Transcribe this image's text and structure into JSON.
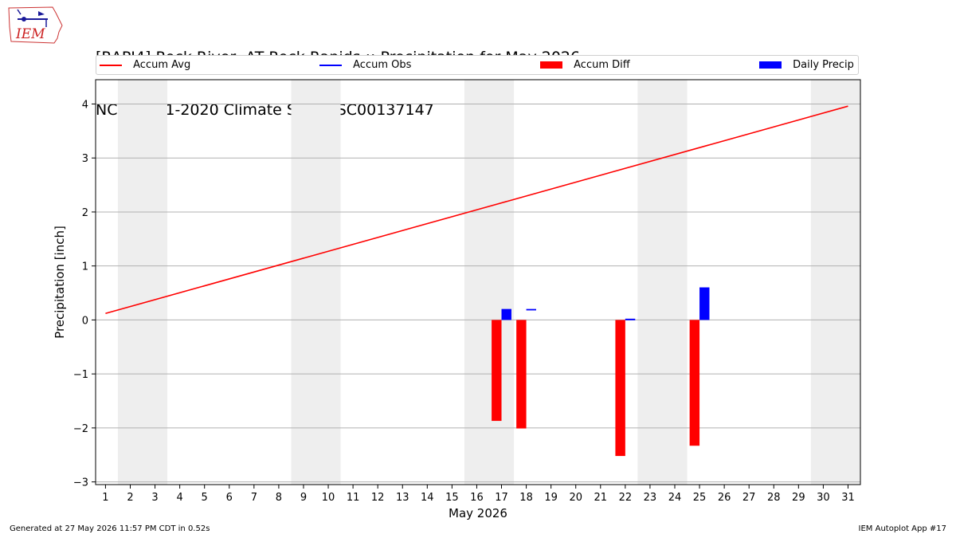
{
  "header": {
    "title_line1": "[RAPI4] Rock River  AT Rock Rapids :: Precipitation for May 2026",
    "title_line2": "NCEI 1991-2020 Climate Site: USC00137147",
    "logo_text": "IEM"
  },
  "footer": {
    "generated": "Generated at 27 May 2026 11:57 PM CDT in 0.52s",
    "app": "IEM Autoplot App #17"
  },
  "colors": {
    "accum_avg": "#ff0000",
    "accum_obs": "#0000ff",
    "accum_diff": "#ff0000",
    "daily_precip": "#0000ff",
    "weekend_shade": "#eeeeee",
    "grid": "#b0b0b0"
  },
  "chart_data": {
    "type": "bar",
    "title": "[RAPI4] Rock River  AT Rock Rapids :: Precipitation for May 2026",
    "xlabel": "May 2026",
    "ylabel": "Precipitation [inch]",
    "ylim": [
      -3.05,
      4.45
    ],
    "xlim": [
      0.6,
      31.5
    ],
    "yticks": [
      -3,
      -2,
      -1,
      0,
      1,
      2,
      3,
      4
    ],
    "xticks": [
      1,
      2,
      3,
      4,
      5,
      6,
      7,
      8,
      9,
      10,
      11,
      12,
      13,
      14,
      15,
      16,
      17,
      18,
      19,
      20,
      21,
      22,
      23,
      24,
      25,
      26,
      27,
      28,
      29,
      30,
      31
    ],
    "grid": "horizontal",
    "legend": [
      {
        "name": "Accum Avg",
        "kind": "line",
        "color": "#ff0000"
      },
      {
        "name": "Accum Obs",
        "kind": "line",
        "color": "#0000ff"
      },
      {
        "name": "Accum Diff",
        "kind": "bar",
        "color": "#ff0000"
      },
      {
        "name": "Daily Precip",
        "kind": "bar",
        "color": "#0000ff"
      }
    ],
    "legend_placement": "top, above plot",
    "weekend_shading": [
      [
        1.5,
        3.5
      ],
      [
        8.5,
        10.5
      ],
      [
        15.5,
        17.5
      ],
      [
        22.5,
        24.5
      ],
      [
        29.5,
        31.5
      ]
    ],
    "series": [
      {
        "name": "Accum Avg",
        "type": "line",
        "x": [
          1,
          31
        ],
        "values": [
          0.12,
          3.96
        ]
      },
      {
        "name": "Accum Obs",
        "type": "line",
        "x": [
          17,
          18,
          22,
          25
        ],
        "values": [
          0.19,
          0.19,
          0.01,
          0.59
        ]
      },
      {
        "name": "Accum Diff",
        "type": "bar",
        "x": [
          17,
          18,
          22,
          25
        ],
        "values": [
          -1.87,
          -2.01,
          -2.52,
          -2.33
        ]
      },
      {
        "name": "Daily Precip",
        "type": "bar",
        "x": [
          17,
          22,
          25
        ],
        "values": [
          0.19,
          0.01,
          0.59
        ]
      }
    ]
  }
}
